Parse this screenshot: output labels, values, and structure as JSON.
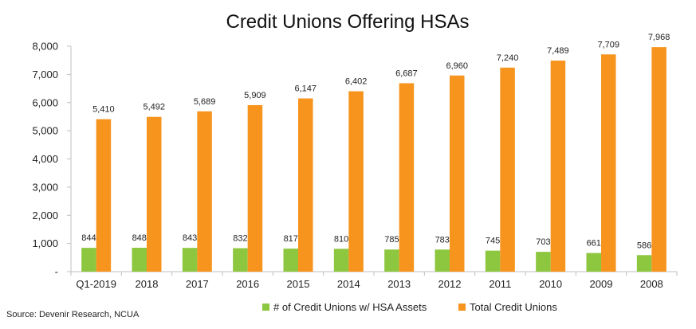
{
  "chart_data": {
    "type": "bar",
    "title": "Credit Unions Offering HSAs",
    "categories": [
      "Q1-2019",
      "2018",
      "2017",
      "2016",
      "2015",
      "2014",
      "2013",
      "2012",
      "2011",
      "2010",
      "2009",
      "2008"
    ],
    "series": [
      {
        "name": "# of Credit Unions w/ HSA Assets",
        "color": "#8dc63f",
        "values": [
          844,
          848,
          843,
          832,
          817,
          810,
          785,
          783,
          745,
          703,
          661,
          586
        ],
        "labels": [
          "844",
          "848",
          "843",
          "832",
          "817",
          "810",
          "785",
          "783",
          "745",
          "703",
          "661",
          "586"
        ]
      },
      {
        "name": "Total Credit Unions",
        "color": "#f7941d",
        "values": [
          5410,
          5492,
          5689,
          5909,
          6147,
          6402,
          6687,
          6960,
          7240,
          7489,
          7709,
          7968
        ],
        "labels": [
          "5,410",
          "5,492",
          "5,689",
          "5,909",
          "6,147",
          "6,402",
          "6,687",
          "6,960",
          "7,240",
          "7,489",
          "7,709",
          "7,968"
        ]
      }
    ],
    "ylim": [
      0,
      8000
    ],
    "yticks": [
      0,
      1000,
      2000,
      3000,
      4000,
      5000,
      6000,
      7000,
      8000
    ],
    "ytick_labels": [
      "-",
      "1,000",
      "2,000",
      "3,000",
      "4,000",
      "5,000",
      "6,000",
      "7,000",
      "8,000"
    ],
    "xlabel": "",
    "ylabel": "",
    "grid": false,
    "legend_position": "bottom"
  },
  "source_text": "Source: Devenir Research, NCUA"
}
